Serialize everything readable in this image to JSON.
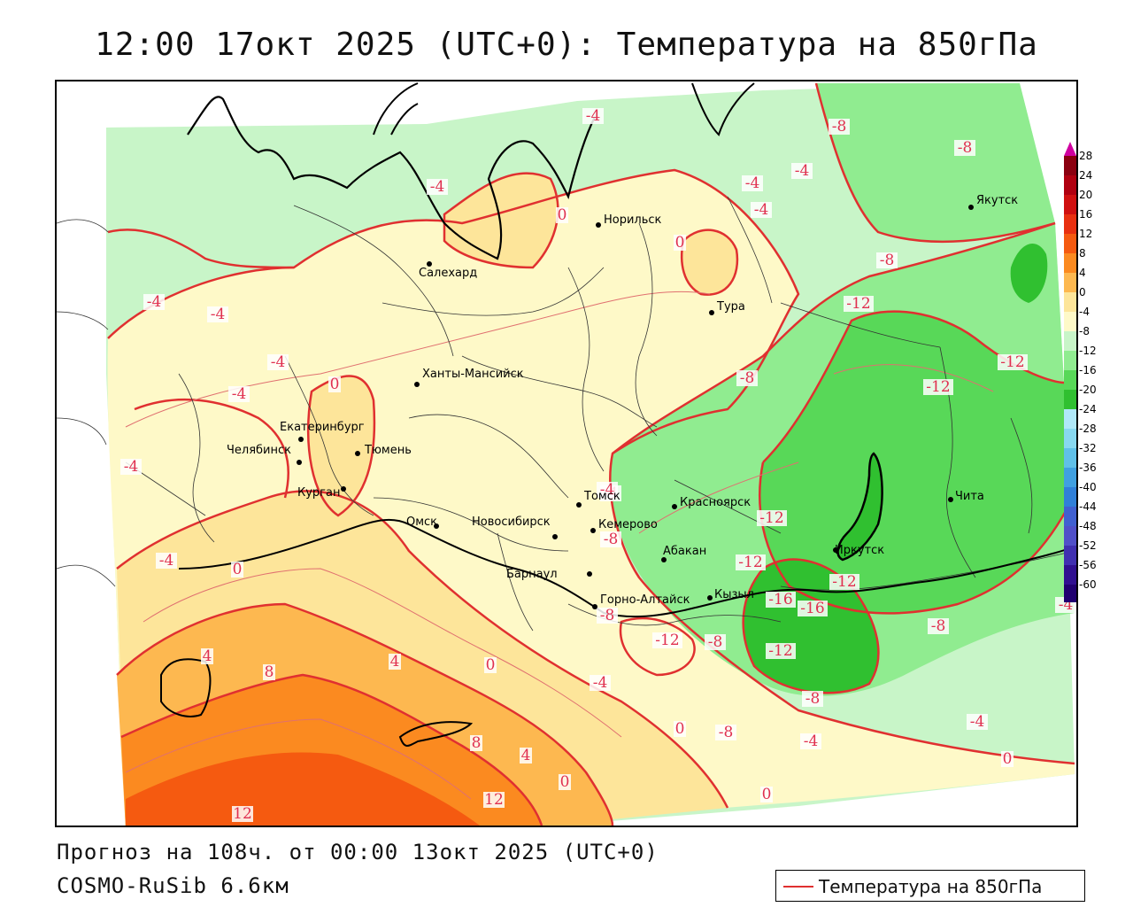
{
  "title": "12:00 17окт 2025 (UTC+0): Температура на 850гПа",
  "forecast_text": "Прогноз на 108ч. от 00:00 13окт 2025 (UTC+0)",
  "model_text": "COSMO-RuSib 6.6км",
  "legend": {
    "label": "Температура на 850гПа",
    "color": "#e03030"
  },
  "colorbar": {
    "labels": [
      "28",
      "24",
      "20",
      "16",
      "12",
      "8",
      "4",
      "0",
      "-4",
      "-8",
      "-12",
      "-16",
      "-20",
      "-24",
      "-28",
      "-32",
      "-36",
      "-40",
      "-44",
      "-48",
      "-52",
      "-56",
      "-60"
    ],
    "colors": [
      "#8b0010",
      "#b00010",
      "#d01010",
      "#e83010",
      "#f55a10",
      "#fb8a20",
      "#fdb850",
      "#fde59a",
      "#fef9c8",
      "#c8f5c8",
      "#90ec90",
      "#58d858",
      "#30c030",
      "#b0e8f8",
      "#88d8f0",
      "#60c0e8",
      "#40a0e0",
      "#3080d8",
      "#4060d0",
      "#5050c8",
      "#4030b0",
      "#301090",
      "#200070"
    ],
    "top_color": "#d000a0",
    "bottom_color": "#9000b0"
  },
  "cities": [
    {
      "name": "Норильск"
    },
    {
      "name": "Салехард"
    },
    {
      "name": "Тура"
    },
    {
      "name": "Якутск"
    },
    {
      "name": "Ханты-Мансийск"
    },
    {
      "name": "Екатеринбург"
    },
    {
      "name": "Тюмень"
    },
    {
      "name": "Челябинск"
    },
    {
      "name": "Курган"
    },
    {
      "name": "Омск"
    },
    {
      "name": "Новосибирск"
    },
    {
      "name": "Томск"
    },
    {
      "name": "Кемерово"
    },
    {
      "name": "Красноярск"
    },
    {
      "name": "Барнаул"
    },
    {
      "name": "Абакан"
    },
    {
      "name": "Иркутск"
    },
    {
      "name": "Чита"
    },
    {
      "name": "Кызыл"
    },
    {
      "name": "Горно-Алтайск"
    }
  ],
  "contour_labels": [
    {
      "text": "-4"
    },
    {
      "text": "-8"
    },
    {
      "text": "-8"
    },
    {
      "text": "-4"
    },
    {
      "text": "-4"
    },
    {
      "text": "-4"
    },
    {
      "text": "-4"
    },
    {
      "text": "0"
    },
    {
      "text": "0"
    },
    {
      "text": "-8"
    },
    {
      "text": "-12"
    },
    {
      "text": "-4"
    },
    {
      "text": "-4"
    },
    {
      "text": "-4"
    },
    {
      "text": "0"
    },
    {
      "text": "-4"
    },
    {
      "text": "-8"
    },
    {
      "text": "-12"
    },
    {
      "text": "-12"
    },
    {
      "text": "-4"
    },
    {
      "text": "-4"
    },
    {
      "text": "0"
    },
    {
      "text": "-12"
    },
    {
      "text": "-4"
    },
    {
      "text": "-12"
    },
    {
      "text": "-12"
    },
    {
      "text": "-16"
    },
    {
      "text": "-16"
    },
    {
      "text": "-8"
    },
    {
      "text": "-8"
    },
    {
      "text": "-12"
    },
    {
      "text": "-8"
    },
    {
      "text": "-12"
    },
    {
      "text": "-4"
    },
    {
      "text": "4"
    },
    {
      "text": "8"
    },
    {
      "text": "4"
    },
    {
      "text": "0"
    },
    {
      "text": "-4"
    },
    {
      "text": "-8"
    },
    {
      "text": "-8"
    },
    {
      "text": "-4"
    },
    {
      "text": "-4"
    },
    {
      "text": "0"
    },
    {
      "text": "8"
    },
    {
      "text": "4"
    },
    {
      "text": "0"
    },
    {
      "text": "12"
    },
    {
      "text": "12"
    },
    {
      "text": "0"
    },
    {
      "text": "0"
    },
    {
      "text": "-8"
    },
    {
      "text": "-4"
    }
  ]
}
